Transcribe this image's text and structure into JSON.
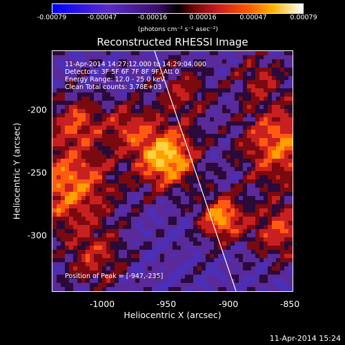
{
  "colorbar": {
    "ticks": [
      "-0.00079",
      "-0.00047",
      "-0.00016",
      "0.00016",
      "0.00047",
      "0.00079"
    ],
    "units": "(photons cm⁻² s⁻¹ asec⁻²)"
  },
  "title": "Reconstructed RHESSI Image",
  "info": {
    "time": "11-Apr-2014 14:27:12.000 to 14:29:04.000",
    "detectors": "Detectors: 3F 5F 6F 7F 8F 9F, Att 0",
    "energy": "Energy Range: 12.0 - 25.0 keV",
    "clean": "Clean    Total counts: 3.78E+03"
  },
  "peak": "Position of Peak = [-947,-235]",
  "axes": {
    "xlabel": "Heliocentric X (arcsec)",
    "ylabel": "Heliocentric Y (arcsec)",
    "xticks": [
      "-1000",
      "-950",
      "-900",
      "-850"
    ],
    "yticks": [
      "-200",
      "-250",
      "-300"
    ]
  },
  "footer": "11-Apr-2014 15:24",
  "colors": {
    "background": "#000000",
    "foreground": "#ffffff"
  }
}
